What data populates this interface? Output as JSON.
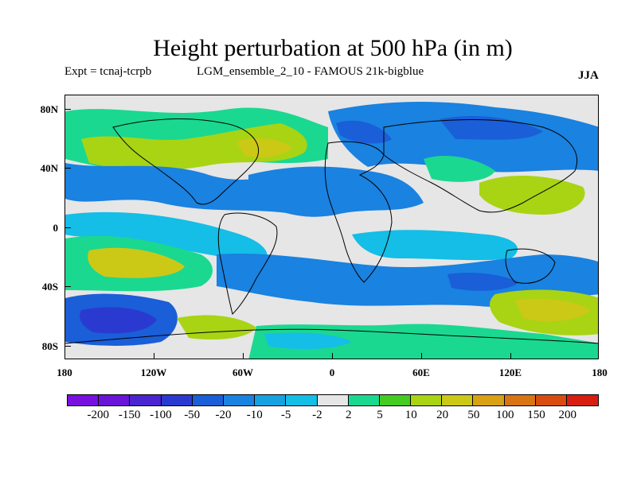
{
  "title": "Height perturbation at 500 hPa (in m)",
  "experiment": "Expt = tcnaj-tcrpb",
  "run_name": "LGM_ensemble_2_10 - FAMOUS 21k-bigblue",
  "season": "JJA",
  "lat_labels": [
    "80N",
    "40N",
    "0",
    "40S",
    "80S"
  ],
  "lon_labels": [
    "180",
    "120W",
    "60W",
    "0",
    "60E",
    "120E",
    "180"
  ],
  "colorbar": {
    "colors": [
      "#7a10e0",
      "#6a14d8",
      "#4a24d0",
      "#2a3ad0",
      "#1a5ed8",
      "#1a82e0",
      "#16a2e0",
      "#14bee6",
      "#e6e6e6",
      "#1ad890",
      "#44cc22",
      "#a8d414",
      "#ccc816",
      "#d8a214",
      "#d87414",
      "#d84c12",
      "#d81e10"
    ],
    "labels": [
      "-200",
      "-150",
      "-100",
      "-50",
      "-20",
      "-10",
      "-5",
      "-2",
      "2",
      "5",
      "10",
      "20",
      "50",
      "100",
      "150",
      "200"
    ]
  },
  "colors": {
    "neutral": "#e6e6e6",
    "light_blue": "#14bee6",
    "mid_blue": "#1a82e0",
    "dark_blue": "#1a5ed8",
    "navy": "#2a3ad0",
    "green_cyan": "#1ad890",
    "green": "#44cc22",
    "yellow_green": "#a8d414",
    "yellow": "#ccc816",
    "orange": "#d8a214"
  }
}
